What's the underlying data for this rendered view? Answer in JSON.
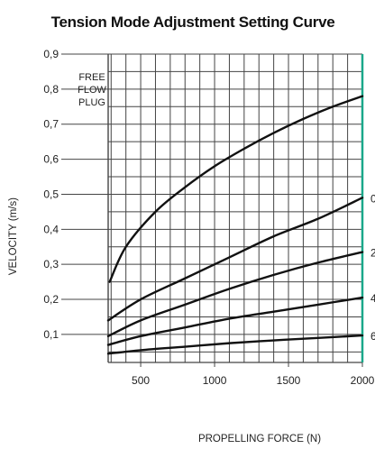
{
  "chart_data": {
    "type": "line",
    "title": "Tension Mode Adjustment Setting Curve",
    "xlabel": "PROPELLING FORCE (N)",
    "ylabel": "VELOCITY (m/s)",
    "xlim": [
      280,
      2000
    ],
    "ylim": [
      0.02,
      0.9
    ],
    "x_ticks": [
      500,
      1000,
      1500,
      2000
    ],
    "x_tick_labels": [
      "500",
      "1000",
      "1500",
      "2000"
    ],
    "y_ticks": [
      0.1,
      0.2,
      0.3,
      0.4,
      0.5,
      0.6,
      0.7,
      0.8,
      0.9
    ],
    "y_tick_labels": [
      "0,1",
      "0,2",
      "0,3",
      "0,4",
      "0,5",
      "0,6",
      "0,7",
      "0,8",
      "0,9"
    ],
    "grid": true,
    "annotation": [
      "FREE",
      "FLOW",
      "PLUG"
    ],
    "series": [
      {
        "name": "",
        "x": [
          290,
          400,
          600,
          800,
          1000,
          1200,
          1400,
          1600,
          1800,
          2000
        ],
        "y": [
          0.25,
          0.35,
          0.45,
          0.52,
          0.58,
          0.63,
          0.675,
          0.715,
          0.75,
          0.78
        ]
      },
      {
        "name": "0",
        "x": [
          280,
          500,
          800,
          1100,
          1400,
          1700,
          2000
        ],
        "y": [
          0.14,
          0.2,
          0.26,
          0.32,
          0.38,
          0.43,
          0.49
        ]
      },
      {
        "name": "2",
        "x": [
          280,
          500,
          800,
          1100,
          1400,
          1700,
          2000
        ],
        "y": [
          0.095,
          0.14,
          0.185,
          0.23,
          0.27,
          0.305,
          0.335
        ]
      },
      {
        "name": "4",
        "x": [
          280,
          500,
          800,
          1100,
          1400,
          1700,
          2000
        ],
        "y": [
          0.07,
          0.095,
          0.12,
          0.145,
          0.165,
          0.185,
          0.205
        ]
      },
      {
        "name": "6",
        "x": [
          280,
          500,
          800,
          1100,
          1400,
          1700,
          2000
        ],
        "y": [
          0.045,
          0.055,
          0.065,
          0.075,
          0.083,
          0.09,
          0.097
        ]
      }
    ],
    "colors": {
      "grid": "#444444",
      "curve": "#111111",
      "right_edge": "#1aa88a"
    }
  }
}
